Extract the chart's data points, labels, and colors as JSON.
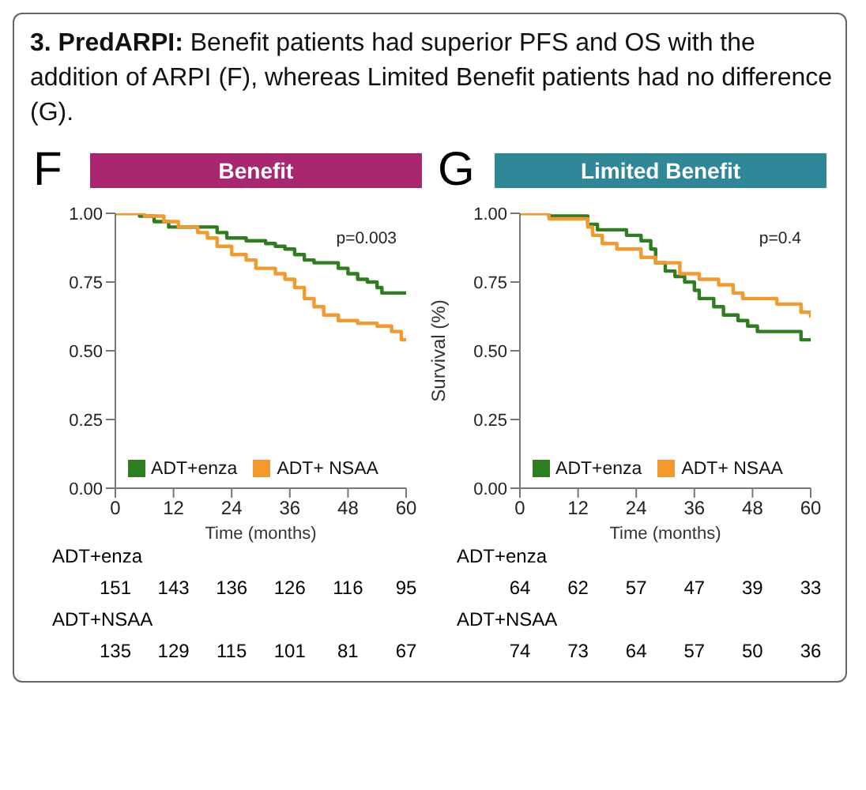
{
  "chart_data": [
    {
      "type": "step",
      "title": "Benefit",
      "xlabel": "Time (months)",
      "xlim": [
        0,
        60
      ],
      "xticks": [
        0,
        12,
        24,
        36,
        48,
        60
      ],
      "ylim": [
        0,
        1
      ],
      "yticks": [
        {
          "value": 0,
          "label": "0.00"
        },
        {
          "value": 0.25,
          "label": "0.25"
        },
        {
          "value": 0.5,
          "label": "0.50"
        },
        {
          "value": 0.75,
          "label": "0.75"
        },
        {
          "value": 1,
          "label": "1.00"
        }
      ],
      "legend": "bottom",
      "marker": "none",
      "annotations": [
        "3. PredARPI:",
        "Benefit patients had superior PFS and OS with the addition of ARPI (F), whereas Limited Benefit patients had no difference (G).",
        "F",
        "p=0.003",
        "ADT+enza",
        "151",
        "143",
        "136",
        "126",
        "116",
        "95",
        "ADT+NSAA",
        "135",
        "129",
        "115",
        "101",
        "81",
        "67"
      ],
      "series": [
        {
          "name": "ADT+enza",
          "color": "#2e7d1e",
          "x": [
            0,
            5,
            8,
            11,
            21,
            23,
            27,
            31,
            33,
            35,
            37,
            39,
            41,
            46,
            48,
            50,
            52,
            54,
            55,
            60
          ],
          "values": [
            1.0,
            0.99,
            0.97,
            0.95,
            0.93,
            0.91,
            0.9,
            0.89,
            0.88,
            0.87,
            0.85,
            0.83,
            0.82,
            0.8,
            0.78,
            0.76,
            0.75,
            0.73,
            0.71,
            0.71
          ]
        },
        {
          "name": "ADT+ NSAA",
          "color": "#f39a2e",
          "x": [
            0,
            6,
            10,
            13,
            17,
            19,
            21,
            24,
            27,
            29,
            33,
            35,
            37,
            39,
            41,
            43,
            46,
            50,
            54,
            57,
            59,
            60
          ],
          "values": [
            1.0,
            0.99,
            0.97,
            0.95,
            0.93,
            0.91,
            0.88,
            0.85,
            0.83,
            0.8,
            0.78,
            0.76,
            0.73,
            0.69,
            0.66,
            0.63,
            0.61,
            0.6,
            0.59,
            0.57,
            0.54,
            0.54
          ]
        }
      ]
    },
    {
      "type": "step",
      "title": "Limited Benefit",
      "xlabel": "Time (months)",
      "ylabel": "Survival (%)",
      "xlim": [
        0,
        60
      ],
      "xticks": [
        0,
        12,
        24,
        36,
        48,
        60
      ],
      "ylim": [
        0,
        1
      ],
      "yticks": [
        {
          "value": 0,
          "label": "0.00"
        },
        {
          "value": 0.25,
          "label": "0.25"
        },
        {
          "value": 0.5,
          "label": "0.50"
        },
        {
          "value": 0.75,
          "label": "0.75"
        },
        {
          "value": 1,
          "label": "1.00"
        }
      ],
      "legend": "bottom",
      "marker": "none",
      "annotations": [
        "G",
        "p=0.4",
        "ADT+enza",
        "64",
        "62",
        "57",
        "47",
        "39",
        "33",
        "ADT+NSAA",
        "74",
        "73",
        "64",
        "57",
        "50",
        "36"
      ],
      "series": [
        {
          "name": "ADT+enza",
          "color": "#2e7d1e",
          "x": [
            0,
            6,
            14,
            16,
            22,
            25,
            27,
            28,
            30,
            32,
            34,
            36,
            37,
            40,
            42,
            45,
            47,
            49,
            58,
            60
          ],
          "values": [
            1.0,
            0.99,
            0.96,
            0.94,
            0.92,
            0.9,
            0.87,
            0.82,
            0.79,
            0.77,
            0.75,
            0.72,
            0.69,
            0.66,
            0.63,
            0.61,
            0.59,
            0.57,
            0.54,
            0.54
          ]
        },
        {
          "name": "ADT+ NSAA",
          "color": "#f39a2e",
          "x": [
            0,
            6,
            14,
            15,
            17,
            20,
            25,
            28,
            33,
            37,
            41,
            44,
            46,
            53,
            58,
            60
          ],
          "values": [
            1.0,
            0.98,
            0.95,
            0.92,
            0.89,
            0.87,
            0.84,
            0.82,
            0.78,
            0.76,
            0.74,
            0.71,
            0.69,
            0.67,
            0.64,
            0.62
          ]
        }
      ]
    }
  ]
}
